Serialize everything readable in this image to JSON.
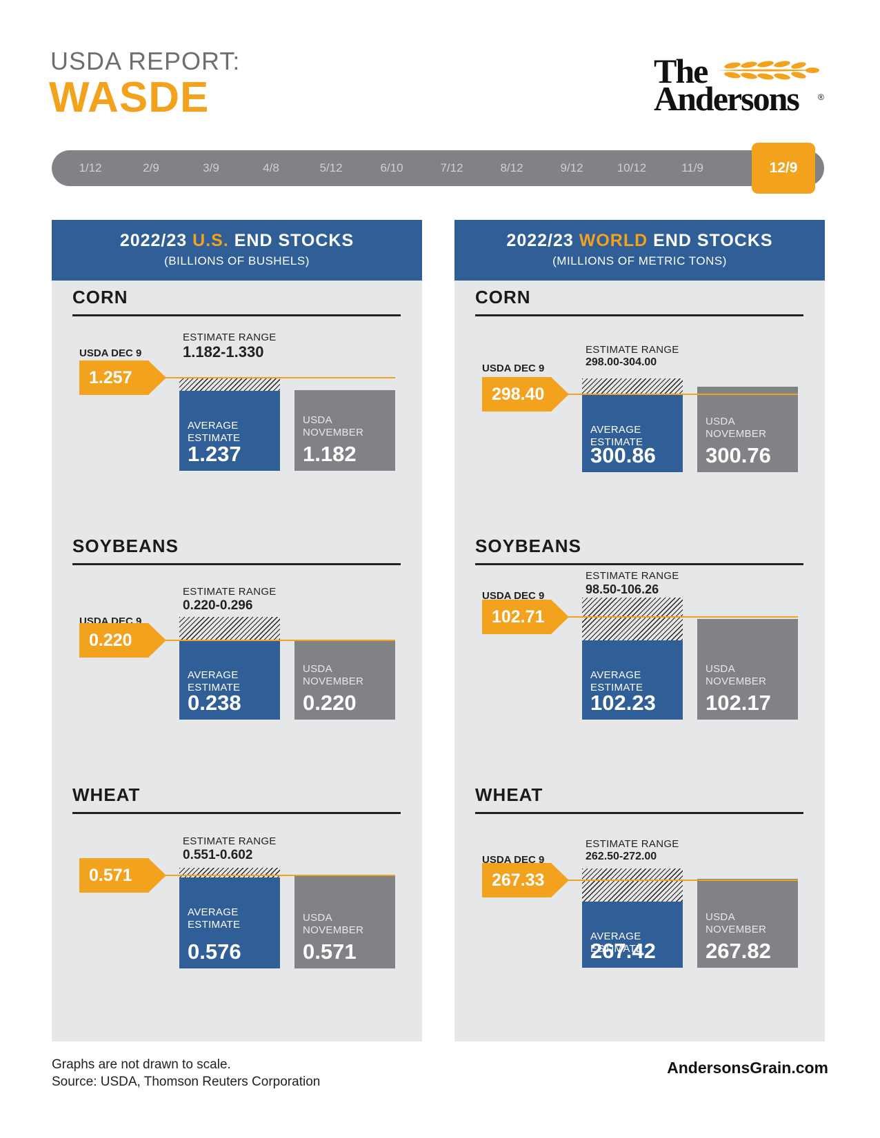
{
  "header": {
    "line1": "USDA REPORT:",
    "line2": "WASDE"
  },
  "logo": {
    "the": "The",
    "name": "Andersons",
    "reg": "®"
  },
  "timeline": {
    "dates": [
      "1/12",
      "2/9",
      "3/9",
      "4/8",
      "5/12",
      "6/10",
      "7/12",
      "8/12",
      "9/12",
      "10/12",
      "11/9"
    ],
    "active": "12/9"
  },
  "panels": [
    {
      "title_pre": "2022/23 ",
      "title_hl": "U.S.",
      "title_post": " END STOCKS",
      "subtitle": "(BILLIONS OF BUSHELS)"
    },
    {
      "title_pre": "2022/23 ",
      "title_hl": "WORLD",
      "title_post": " END STOCKS",
      "subtitle": "(MILLIONS OF METRIC TONS)"
    }
  ],
  "labels": {
    "estimate_range": "ESTIMATE RANGE",
    "usda_dec": "USDA DEC 9",
    "avg_line1": "AVERAGE",
    "avg_line2": "ESTIMATE",
    "nov_line1": "USDA",
    "nov_line2": "NOVEMBER"
  },
  "chart_data": [
    {
      "type": "bar",
      "title": "2022/23 U.S. END STOCKS",
      "units": "(BILLIONS OF BUSHELS)",
      "crops": [
        {
          "name": "CORN",
          "usda_dec": "1.257",
          "range": "1.182-1.330",
          "avg": "1.237",
          "nov": "1.182"
        },
        {
          "name": "SOYBEANS",
          "usda_dec": "0.220",
          "range": "0.220-0.296",
          "avg": "0.238",
          "nov": "0.220"
        },
        {
          "name": "WHEAT",
          "usda_dec": "0.571",
          "range": "0.551-0.602",
          "avg": "0.576",
          "nov": "0.571"
        }
      ]
    },
    {
      "type": "bar",
      "title": "2022/23 WORLD END STOCKS",
      "units": "(MILLIONS OF METRIC TONS)",
      "crops": [
        {
          "name": "CORN",
          "usda_dec": "298.40",
          "range": "298.00-304.00",
          "avg": "300.86",
          "nov": "300.76"
        },
        {
          "name": "SOYBEANS",
          "usda_dec": "102.71",
          "range": "98.50-106.26",
          "avg": "102.23",
          "nov": "102.17"
        },
        {
          "name": "WHEAT",
          "usda_dec": "267.33",
          "range": "262.50-272.00",
          "avg": "267.42",
          "nov": "267.82"
        }
      ]
    }
  ],
  "footer": {
    "note1": "Graphs are not drawn to scale.",
    "note2": "Source: USDA, Thomson Reuters Corporation",
    "site": "AndersonsGrain.com"
  },
  "colors": {
    "orange": "#f2a21d",
    "blue": "#2f5f96",
    "gray": "#808285",
    "panel": "#e6e7e8"
  }
}
